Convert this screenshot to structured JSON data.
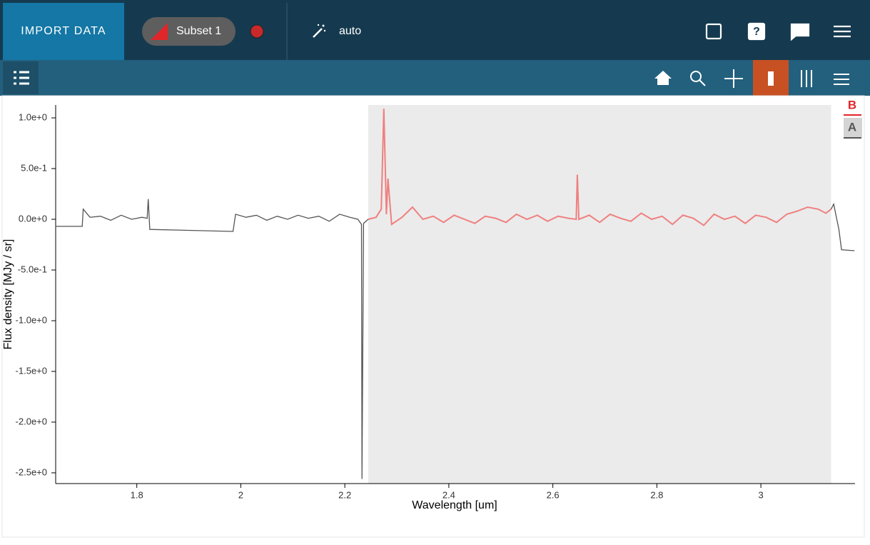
{
  "toolbar": {
    "import_button": "IMPORT DATA",
    "subset": "Subset 1",
    "mode": "auto"
  },
  "chart_data": {
    "type": "line",
    "x_label": "Wavelength [um]",
    "y_label": "Flux density [MJy / sr]",
    "xlim": [
      1.644,
      3.181
    ],
    "ylim": [
      -2.606,
      1.127
    ],
    "xticks": [
      1.8,
      2,
      2.2,
      2.4,
      2.6,
      2.8,
      3
    ],
    "yticks": [
      {
        "value": 1.0,
        "label": "1.0e+0"
      },
      {
        "value": 0.5,
        "label": "5.0e-1"
      },
      {
        "value": 0.0,
        "label": "0.0e+0"
      },
      {
        "value": -0.5,
        "label": "-5.0e-1"
      },
      {
        "value": -1.0,
        "label": "-1.0e+0"
      },
      {
        "value": -1.5,
        "label": "-1.5e+0"
      },
      {
        "value": -2.0,
        "label": "-2.0e+0"
      },
      {
        "value": -2.5,
        "label": "-2.5e+0"
      }
    ],
    "subset_range": [
      2.245,
      3.135
    ],
    "subset_fill": "#ebebeb",
    "x": [
      1.644,
      1.695,
      1.697,
      1.71,
      1.73,
      1.75,
      1.77,
      1.79,
      1.81,
      1.82,
      1.822,
      1.825,
      1.985,
      1.99,
      2.01,
      2.03,
      2.05,
      2.07,
      2.09,
      2.11,
      2.13,
      2.15,
      2.17,
      2.19,
      2.21,
      2.225,
      2.232,
      2.233,
      2.236,
      2.245,
      2.26,
      2.27,
      2.275,
      2.28,
      2.283,
      2.29,
      2.31,
      2.33,
      2.35,
      2.37,
      2.39,
      2.41,
      2.43,
      2.45,
      2.47,
      2.49,
      2.51,
      2.53,
      2.55,
      2.57,
      2.59,
      2.61,
      2.63,
      2.645,
      2.647,
      2.65,
      2.67,
      2.69,
      2.71,
      2.73,
      2.75,
      2.77,
      2.79,
      2.81,
      2.83,
      2.85,
      2.87,
      2.89,
      2.91,
      2.93,
      2.95,
      2.97,
      2.99,
      3.01,
      3.03,
      3.05,
      3.07,
      3.09,
      3.11,
      3.125,
      3.135,
      3.14,
      3.15,
      3.155,
      3.18
    ],
    "series": [
      {
        "name": "A",
        "color": "#555555",
        "values": [
          -0.07,
          -0.07,
          0.1,
          0.02,
          0.03,
          -0.01,
          0.04,
          0.0,
          0.02,
          0.01,
          0.2,
          -0.1,
          -0.12,
          0.05,
          0.02,
          0.04,
          -0.01,
          0.03,
          0.0,
          0.04,
          0.01,
          0.03,
          -0.02,
          0.05,
          0.02,
          0.0,
          -0.05,
          -2.56,
          -0.04,
          0.0,
          0.02,
          0.1,
          1.09,
          0.05,
          0.4,
          -0.05,
          0.02,
          0.12,
          0.0,
          0.03,
          -0.03,
          0.04,
          0.0,
          -0.04,
          0.03,
          0.01,
          -0.03,
          0.05,
          0.0,
          0.04,
          -0.02,
          0.03,
          0.01,
          0.0,
          0.44,
          0.0,
          0.04,
          -0.03,
          0.05,
          0.01,
          -0.02,
          0.06,
          0.0,
          0.03,
          -0.05,
          0.04,
          0.01,
          -0.06,
          0.05,
          0.0,
          0.03,
          -0.04,
          0.04,
          0.02,
          -0.03,
          0.05,
          0.08,
          0.12,
          0.1,
          0.06,
          0.1,
          0.15,
          -0.1,
          -0.3,
          -0.31
        ]
      },
      {
        "name": "B",
        "color": "#f08080",
        "values": [
          null,
          null,
          null,
          null,
          null,
          null,
          null,
          null,
          null,
          null,
          null,
          null,
          null,
          null,
          null,
          null,
          null,
          null,
          null,
          null,
          null,
          null,
          null,
          null,
          null,
          null,
          null,
          null,
          null,
          0.0,
          0.02,
          0.1,
          1.09,
          0.05,
          0.4,
          -0.05,
          0.02,
          0.12,
          0.0,
          0.03,
          -0.03,
          0.04,
          0.0,
          -0.04,
          0.03,
          0.01,
          -0.03,
          0.05,
          0.0,
          0.04,
          -0.02,
          0.03,
          0.01,
          0.0,
          0.44,
          0.0,
          0.04,
          -0.03,
          0.05,
          0.01,
          -0.02,
          0.06,
          0.0,
          0.03,
          -0.05,
          0.04,
          0.01,
          -0.06,
          0.05,
          0.0,
          0.03,
          -0.04,
          0.04,
          0.02,
          -0.03,
          0.05,
          0.08,
          0.12,
          0.1,
          0.06,
          0.1,
          null,
          null,
          null,
          null
        ]
      }
    ]
  }
}
